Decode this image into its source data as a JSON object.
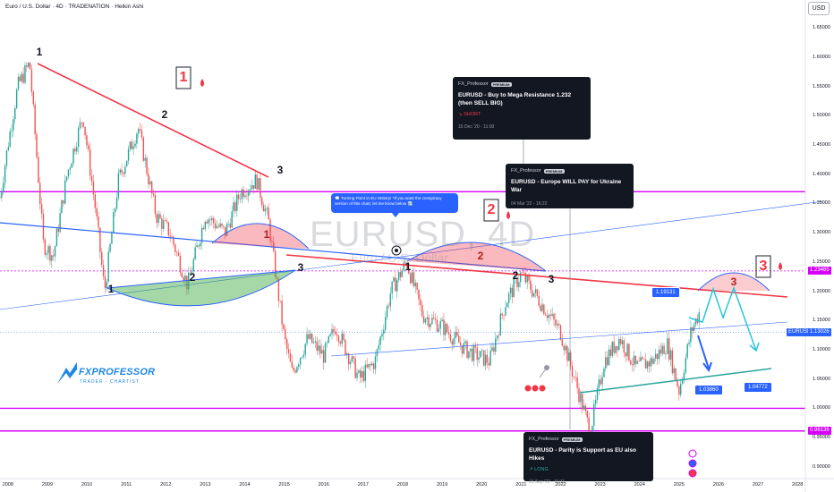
{
  "header": {
    "title": "Euro / U.S. Dollar · 4D · TRADENATION · Heikin Ashi",
    "currency": "USD"
  },
  "watermark": {
    "symbol": "EURUSD, 4D",
    "name": "Euro / U.S. Dollar"
  },
  "colors": {
    "up": "#26a69a",
    "down": "#ef5350",
    "magenta": "#d500f9",
    "resistance": "#f23645",
    "trend_blue": "#2962ff",
    "card_bg": "#131722"
  },
  "chart_data": {
    "type": "candlestick",
    "title": "Euro / U.S. Dollar · 4D · TRADENATION · Heikin Ashi",
    "x_ticks": [
      "2008",
      "2009",
      "2010",
      "2011",
      "2012",
      "2013",
      "2014",
      "2015",
      "2016",
      "2017",
      "2018",
      "2019",
      "2020",
      "2021",
      "2022",
      "2023",
      "2024",
      "2025",
      "2026",
      "2027",
      "2028"
    ],
    "y_ticks": [
      "1.65000",
      "1.60000",
      "1.55000",
      "1.50000",
      "1.45000",
      "1.40000",
      "1.35000",
      "1.30000",
      "1.25000",
      "1.20000",
      "1.15000",
      "1.10000",
      "1.05000",
      "1.00000",
      "0.95000",
      "0.90000"
    ],
    "ylim": [
      0.88,
      1.67
    ],
    "xlim": [
      2007.8,
      2028.2
    ],
    "price_path": [
      [
        2007.8,
        1.36
      ],
      [
        2008.0,
        1.45
      ],
      [
        2008.25,
        1.55
      ],
      [
        2008.55,
        1.59
      ],
      [
        2008.9,
        1.28
      ],
      [
        2009.15,
        1.26
      ],
      [
        2009.5,
        1.4
      ],
      [
        2009.9,
        1.5
      ],
      [
        2010.2,
        1.35
      ],
      [
        2010.45,
        1.2
      ],
      [
        2010.8,
        1.39
      ],
      [
        2011.3,
        1.48
      ],
      [
        2011.75,
        1.33
      ],
      [
        2012.1,
        1.3
      ],
      [
        2012.55,
        1.21
      ],
      [
        2013.0,
        1.33
      ],
      [
        2013.5,
        1.3
      ],
      [
        2013.9,
        1.37
      ],
      [
        2014.3,
        1.39
      ],
      [
        2014.6,
        1.32
      ],
      [
        2015.0,
        1.12
      ],
      [
        2015.2,
        1.06
      ],
      [
        2015.6,
        1.12
      ],
      [
        2016.0,
        1.09
      ],
      [
        2016.3,
        1.14
      ],
      [
        2016.9,
        1.05
      ],
      [
        2017.3,
        1.08
      ],
      [
        2017.7,
        1.2
      ],
      [
        2018.1,
        1.25
      ],
      [
        2018.5,
        1.16
      ],
      [
        2019.0,
        1.14
      ],
      [
        2019.6,
        1.1
      ],
      [
        2020.2,
        1.08
      ],
      [
        2020.6,
        1.18
      ],
      [
        2021.0,
        1.23
      ],
      [
        2021.5,
        1.18
      ],
      [
        2022.0,
        1.13
      ],
      [
        2022.4,
        1.04
      ],
      [
        2022.75,
        0.96
      ],
      [
        2023.1,
        1.08
      ],
      [
        2023.5,
        1.12
      ],
      [
        2023.9,
        1.07
      ],
      [
        2024.3,
        1.08
      ],
      [
        2024.7,
        1.11
      ],
      [
        2025.0,
        1.03
      ],
      [
        2025.3,
        1.13
      ],
      [
        2025.55,
        1.17
      ]
    ],
    "horizontal_levels": [
      {
        "value": 1.37,
        "label": "",
        "color": "#d500f9"
      },
      {
        "value": 1.0,
        "label": "",
        "color": "#d500f9"
      },
      {
        "value": 0.96136,
        "label": "0.96136",
        "color": "#d500f9"
      },
      {
        "value": 1.23465,
        "label": "1.23465",
        "color": "#d500f9",
        "style": "dashed"
      }
    ],
    "current_price": {
      "value": 1.13026,
      "label": "EURUSD",
      "text": "1.13026"
    },
    "price_targets": [
      {
        "value": 1.19131,
        "text": "1.19131"
      },
      {
        "value": 1.0386,
        "text": "1.03860"
      },
      {
        "value": 1.04772,
        "text": "1.04772"
      }
    ]
  },
  "waves": {
    "group_a": [
      "1",
      "2",
      "3"
    ],
    "arc_labels": [
      "1",
      "2",
      "3"
    ],
    "group_b": [
      "1",
      "2",
      "3"
    ],
    "boxed": [
      "1",
      "2",
      "3"
    ]
  },
  "ideas": [
    {
      "author": "FX_Professor",
      "badge": "PREMIUM",
      "title": "EURUSD - Buy to Mega Resistance 1.232 (then SELL BIG)",
      "tag": "↘ SHORT",
      "date": "15 Dec '20 - 11:00"
    },
    {
      "author": "FX_Professor",
      "badge": "PREMIUM",
      "title": "EURUSD - Europe WILL PAY for Ukraine War",
      "tag": "",
      "date": "04 Mar '22 - 16:22"
    },
    {
      "author": "FX_Professor",
      "badge": "PREMIUM",
      "title": "EURUSD - Parity is Support as EU also Hikes",
      "tag": "↗ LONG",
      "date": "15 Sep '22 - 16:11"
    }
  ],
  "bubble_note": "💬 Turning Point in EU History! *If you want the conspiracy version of this chart, let me know below ⤵️",
  "logo": {
    "brand": "FXPROFESSOR",
    "tagline": "TRADER - CHARTIST"
  }
}
